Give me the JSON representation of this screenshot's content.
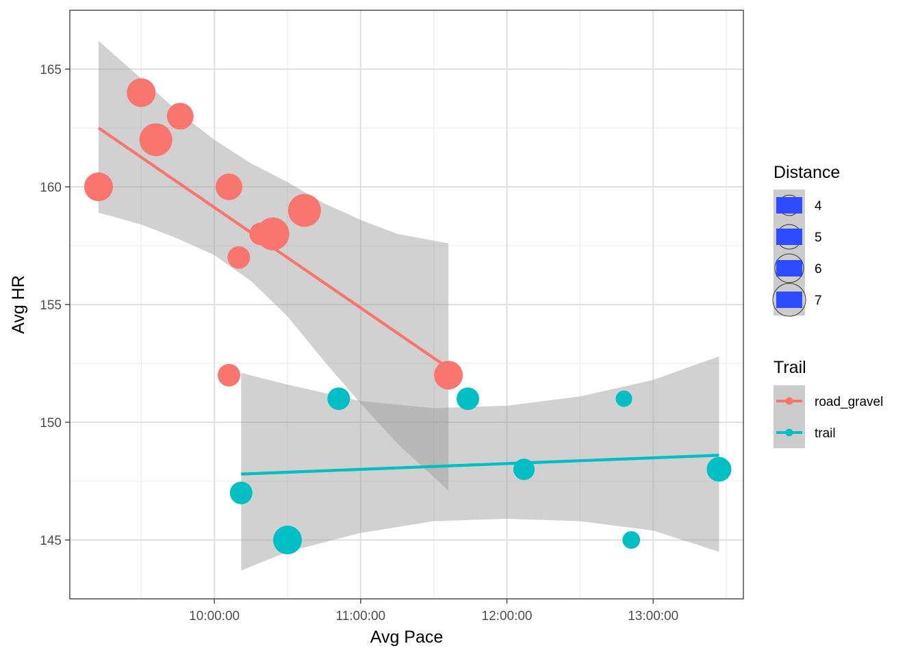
{
  "chart_data": {
    "type": "scatter",
    "xlabel": "Avg Pace",
    "ylabel": "Avg HR",
    "x_unit": "pace h:mm:ss",
    "x_ticks": [
      "10:00:00",
      "11:00:00",
      "12:00:00",
      "13:00:00"
    ],
    "y_ticks": [
      145,
      150,
      155,
      160,
      165
    ],
    "xlim": [
      "9:00:43",
      "13:37:00"
    ],
    "ylim": [
      142.5,
      167.5
    ],
    "grid": true,
    "legend_placement": "right",
    "legends": {
      "size": {
        "title": "Distance",
        "entries": [
          {
            "label": "4",
            "value": 4
          },
          {
            "label": "5",
            "value": 5
          },
          {
            "label": "6",
            "value": 6
          },
          {
            "label": "7",
            "value": 7
          }
        ]
      },
      "color": {
        "title": "Trail",
        "entries": [
          {
            "label": "road_gravel",
            "color": "#F8766D"
          },
          {
            "label": "trail",
            "color": "#00BFC4"
          }
        ]
      }
    },
    "series": [
      {
        "name": "road_gravel",
        "color": "#F8766D",
        "points": [
          {
            "x": "9:12:30",
            "y": 160,
            "distance": 6
          },
          {
            "x": "9:30:00",
            "y": 164,
            "distance": 6
          },
          {
            "x": "9:36:00",
            "y": 162,
            "distance": 7
          },
          {
            "x": "9:46:00",
            "y": 163,
            "distance": 5.5
          },
          {
            "x": "10:06:00",
            "y": 160,
            "distance": 5.5
          },
          {
            "x": "10:06:00",
            "y": 152,
            "distance": 4.5
          },
          {
            "x": "10:10:00",
            "y": 157,
            "distance": 4.5
          },
          {
            "x": "10:19:00",
            "y": 158,
            "distance": 4.5
          },
          {
            "x": "10:24:00",
            "y": 158,
            "distance": 7
          },
          {
            "x": "10:37:00",
            "y": 159,
            "distance": 7
          },
          {
            "x": "11:36:00",
            "y": 152,
            "distance": 6
          }
        ],
        "trend": {
          "x": [
            "9:12:30",
            "11:36:00"
          ],
          "y": [
            162.5,
            152.3
          ]
        },
        "band": {
          "x": [
            "9:12:30",
            "9:30:00",
            "9:45:00",
            "10:00:00",
            "10:15:00",
            "10:30:00",
            "10:45:00",
            "11:00:00",
            "11:15:00",
            "11:36:00"
          ],
          "lower": [
            158.9,
            158.4,
            157.8,
            157.1,
            156.0,
            154.5,
            152.6,
            150.8,
            149.1,
            147.1
          ],
          "upper": [
            166.2,
            164.6,
            163.2,
            162.0,
            161.0,
            160.2,
            159.3,
            158.6,
            158.0,
            157.6
          ]
        }
      },
      {
        "name": "trail",
        "color": "#00BFC4",
        "points": [
          {
            "x": "10:11:00",
            "y": 147,
            "distance": 4.5
          },
          {
            "x": "10:30:00",
            "y": 145,
            "distance": 6
          },
          {
            "x": "10:51:00",
            "y": 151,
            "distance": 4.5
          },
          {
            "x": "11:44:00",
            "y": 151,
            "distance": 4.5
          },
          {
            "x": "12:07:00",
            "y": 148,
            "distance": 4.2
          },
          {
            "x": "12:48:00",
            "y": 151,
            "distance": 3.0
          },
          {
            "x": "12:51:00",
            "y": 145,
            "distance": 3.3
          },
          {
            "x": "13:27:00",
            "y": 148,
            "distance": 5
          }
        ],
        "trend": {
          "x": [
            "10:11:00",
            "13:27:00"
          ],
          "y": [
            147.8,
            148.6
          ]
        },
        "band": {
          "x": [
            "10:11:00",
            "10:30:00",
            "11:00:00",
            "11:30:00",
            "12:00:00",
            "12:30:00",
            "13:00:00",
            "13:27:00"
          ],
          "lower": [
            143.7,
            144.5,
            145.3,
            145.8,
            145.9,
            145.8,
            145.4,
            144.5
          ],
          "upper": [
            152.1,
            151.6,
            150.9,
            150.6,
            150.7,
            151.1,
            151.8,
            152.8
          ]
        }
      }
    ]
  }
}
